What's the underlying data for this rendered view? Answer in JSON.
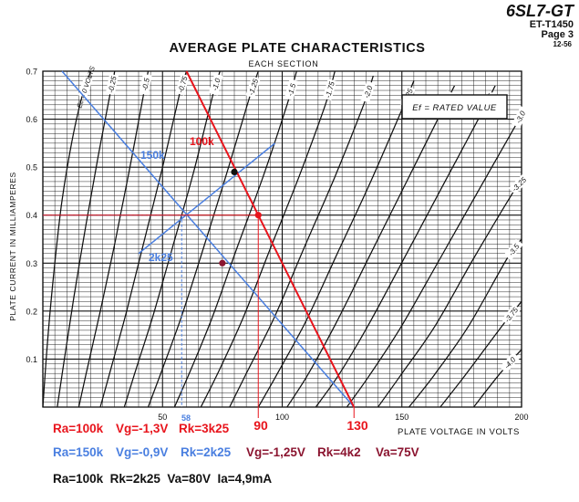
{
  "header": {
    "tube": "6SL7-GT",
    "code": "ET-T1450",
    "page": "Page 3",
    "date": "12-56"
  },
  "chart_data": {
    "type": "line",
    "title": "AVERAGE PLATE CHARACTERISTICS",
    "subtitle": "EACH SECTION",
    "xlabel": "PLATE VOLTAGE IN VOLTS",
    "ylabel": "PLATE CURRENT IN MILLIAMPERES",
    "xlim": [
      0,
      200
    ],
    "ylim": [
      0,
      0.7
    ],
    "x_ticks": [
      "50",
      "100",
      "150",
      "200"
    ],
    "y_ticks": [
      "0.1",
      "0.2",
      "0.3",
      "0.4",
      "0.5",
      "0.6",
      "0.7"
    ],
    "grid": true,
    "legend_box": "Ef = RATED VALUE",
    "series": [
      {
        "name": "Ec = 0 VOLTS",
        "x": [
          0,
          2,
          5,
          8,
          12,
          16,
          20
        ],
        "y": [
          0,
          0.14,
          0.3,
          0.43,
          0.55,
          0.64,
          0.7
        ]
      },
      {
        "name": "-0.25",
        "x": [
          6,
          9,
          13,
          18,
          23,
          28,
          30
        ],
        "y": [
          0,
          0.1,
          0.23,
          0.38,
          0.52,
          0.65,
          0.7
        ]
      },
      {
        "name": "-0.5",
        "x": [
          15,
          19,
          24,
          30,
          36,
          42,
          44
        ],
        "y": [
          0,
          0.09,
          0.2,
          0.34,
          0.49,
          0.65,
          0.7
        ]
      },
      {
        "name": "-0.75",
        "x": [
          24,
          29,
          35,
          42,
          50,
          57,
          60
        ],
        "y": [
          0,
          0.09,
          0.2,
          0.34,
          0.5,
          0.65,
          0.7
        ]
      },
      {
        "name": "-1.0",
        "x": [
          34,
          39,
          46,
          54,
          63,
          71,
          74
        ],
        "y": [
          0,
          0.08,
          0.19,
          0.33,
          0.49,
          0.65,
          0.7
        ]
      },
      {
        "name": "-1.25",
        "x": [
          44,
          50,
          58,
          67,
          77,
          86,
          90
        ],
        "y": [
          0,
          0.08,
          0.19,
          0.33,
          0.49,
          0.64,
          0.7
        ]
      },
      {
        "name": "-1.5",
        "x": [
          55,
          62,
          71,
          81,
          92,
          102,
          106
        ],
        "y": [
          0,
          0.08,
          0.19,
          0.33,
          0.48,
          0.63,
          0.7
        ]
      },
      {
        "name": "-1.75",
        "x": [
          66,
          74,
          84,
          95,
          107,
          118,
          122
        ],
        "y": [
          0,
          0.08,
          0.19,
          0.33,
          0.48,
          0.63,
          0.7
        ]
      },
      {
        "name": "-2.0",
        "x": [
          78,
          86,
          97,
          109,
          122,
          134,
          138
        ],
        "y": [
          0,
          0.08,
          0.19,
          0.33,
          0.48,
          0.63,
          0.69
        ]
      },
      {
        "name": "-2.25",
        "x": [
          90,
          98,
          110,
          123,
          137,
          150,
          155
        ],
        "y": [
          0,
          0.07,
          0.18,
          0.32,
          0.47,
          0.62,
          0.68
        ]
      },
      {
        "name": "-2.5",
        "x": [
          102,
          111,
          123,
          137,
          152,
          166,
          172
        ],
        "y": [
          0,
          0.07,
          0.18,
          0.32,
          0.47,
          0.61,
          0.67
        ]
      },
      {
        "name": "-2.75",
        "x": [
          114,
          124,
          137,
          152,
          168,
          183,
          189
        ],
        "y": [
          0,
          0.07,
          0.18,
          0.32,
          0.47,
          0.61,
          0.67
        ]
      },
      {
        "name": "-3.0",
        "x": [
          127,
          137,
          150,
          166,
          183,
          199,
          200
        ],
        "y": [
          0,
          0.07,
          0.17,
          0.31,
          0.46,
          0.6,
          0.61
        ]
      },
      {
        "name": "-3.25",
        "x": [
          140,
          150,
          164,
          180,
          198,
          200
        ],
        "y": [
          0,
          0.07,
          0.17,
          0.31,
          0.46,
          0.47
        ]
      },
      {
        "name": "-3.5",
        "x": [
          153,
          164,
          178,
          194,
          200
        ],
        "y": [
          0,
          0.07,
          0.17,
          0.31,
          0.35
        ]
      },
      {
        "name": "-3.75",
        "x": [
          166,
          177,
          192,
          200
        ],
        "y": [
          0,
          0.07,
          0.17,
          0.22
        ]
      },
      {
        "name": "-4.0",
        "x": [
          180,
          191,
          200
        ],
        "y": [
          0,
          0.07,
          0.12
        ]
      }
    ],
    "overlays": {
      "red_load_line": {
        "label": "100k",
        "x": [
          60,
          130
        ],
        "y": [
          0.7,
          0.0
        ],
        "color": "#e8141c"
      },
      "blue_load_line": {
        "label": "150k",
        "x": [
          8,
          130
        ],
        "y": [
          0.7,
          0.0
        ],
        "color": "#4a7fe0"
      },
      "blue_bias_line": {
        "label": "2k25",
        "x": [
          40,
          97
        ],
        "y": [
          0.32,
          0.55
        ],
        "color": "#4a7fe0"
      },
      "blue_op_guides": {
        "x": 58,
        "y": 0.4,
        "color": "#4a7fe0"
      },
      "red_op_guides": {
        "x": 90,
        "y": 0.4,
        "color": "#e8141c"
      },
      "points": [
        {
          "x": 90,
          "y": 0.4,
          "color": "#e8141c"
        },
        {
          "x": 80,
          "y": 0.49,
          "color": "#111111"
        },
        {
          "x": 75,
          "y": 0.3,
          "color": "#8b1530"
        }
      ],
      "axis_values": {
        "v58": "58",
        "v90": "90",
        "v130": "130"
      }
    }
  },
  "annotations": {
    "line1": {
      "ra": "Ra=100k",
      "vg": "Vg=-1,3V",
      "rk": "Rk=3k25"
    },
    "line2": {
      "ra": "Ra=150k",
      "vg": "Vg=-0,9V",
      "rk": "Rk=2k25",
      "vg2": "Vg=-1,25V",
      "rk2": "Rk=4k2",
      "va2": "Va=75V"
    },
    "line3": {
      "text": "Ra=100k  Rk=2k25  Va=80V  Ia=4,9mA"
    }
  }
}
